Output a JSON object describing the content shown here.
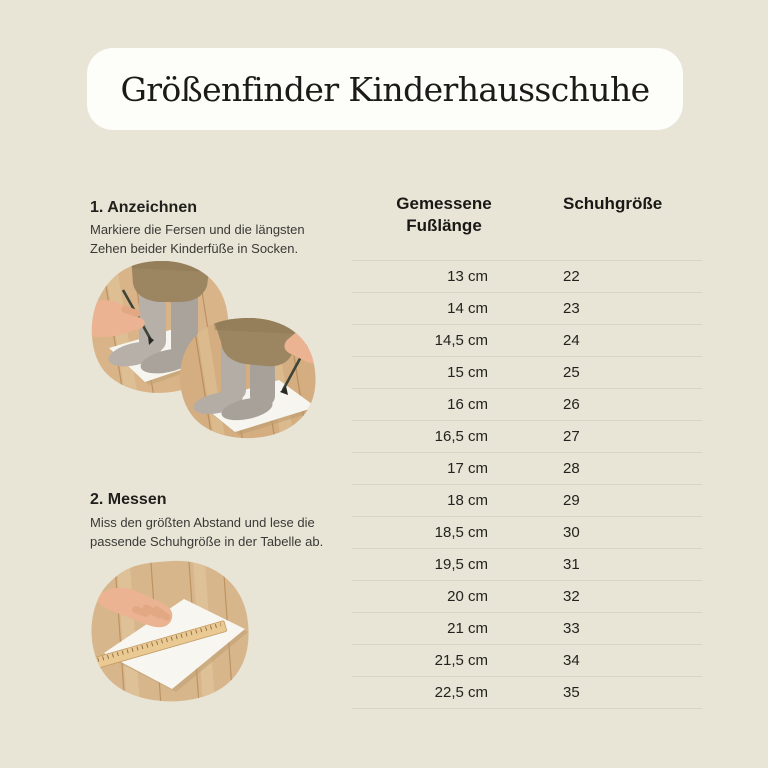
{
  "title": "Größenfinder Kinderhausschuhe",
  "steps": [
    {
      "heading": "1. Anzeichnen",
      "description": "Markiere die Fersen und die längsten\nZehen beider Kinderfüße in Socken."
    },
    {
      "heading": "2. Messen",
      "description": "Miss den größten Abstand und lese die\npassende Schuhgröße in der Tabelle ab."
    }
  ],
  "photos": [
    {
      "name": "step1-photo",
      "alt": "Kinderfüße in Socken auf Papier werden mit Bleistift angezeichnet"
    },
    {
      "name": "step2-photo",
      "alt": "Hand misst mit Lineal den Abstand auf dem Papier"
    }
  ],
  "colors": {
    "background": "#e8e4d6",
    "card": "#fdfdfa",
    "text_dark": "#1b1a17",
    "divider": "#d7d3c5"
  },
  "table": {
    "col1_header": "Gemessene\nFußlänge",
    "col2_header": "Schuhgröße",
    "rows": [
      {
        "length": "13 cm",
        "size": "22"
      },
      {
        "length": "14 cm",
        "size": "23"
      },
      {
        "length": "14,5 cm",
        "size": "24"
      },
      {
        "length": "15 cm",
        "size": "25"
      },
      {
        "length": "16 cm",
        "size": "26"
      },
      {
        "length": "16,5 cm",
        "size": "27"
      },
      {
        "length": "17 cm",
        "size": "28"
      },
      {
        "length": "18 cm",
        "size": "29"
      },
      {
        "length": "18,5 cm",
        "size": "30"
      },
      {
        "length": "19,5 cm",
        "size": "31"
      },
      {
        "length": "20 cm",
        "size": "32"
      },
      {
        "length": "21 cm",
        "size": "33"
      },
      {
        "length": "21,5 cm",
        "size": "34"
      },
      {
        "length": "22,5 cm",
        "size": "35"
      }
    ]
  }
}
